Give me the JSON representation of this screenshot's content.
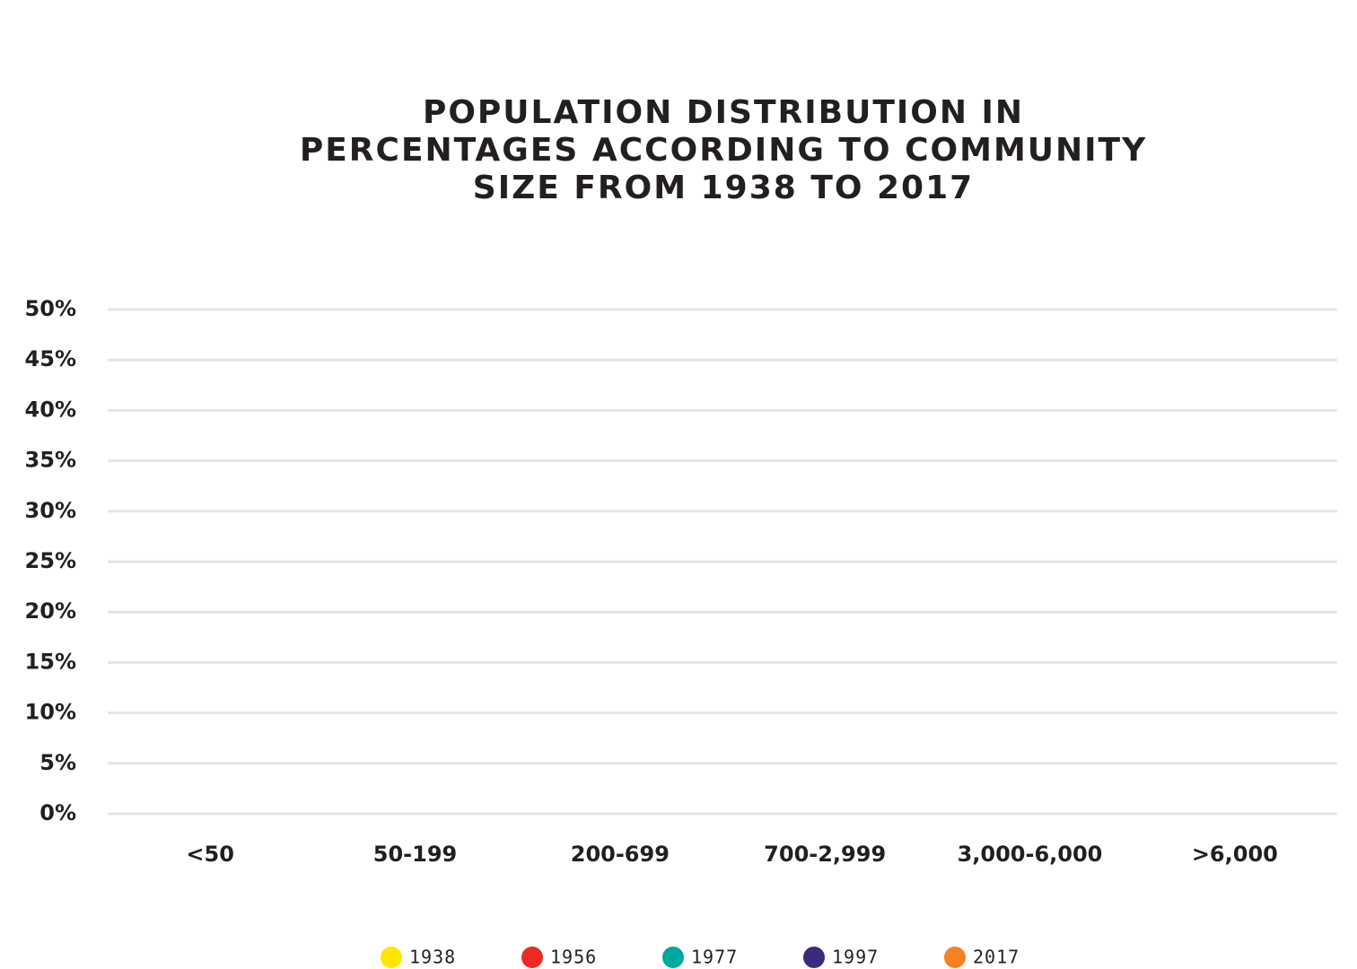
{
  "chart_data": {
    "type": "bar",
    "title": [
      "POPULATION DISTRIBUTION IN",
      "PERCENTAGES ACCORDING TO COMMUNITY",
      "SIZE FROM 1938 TO 2017"
    ],
    "categories": [
      "<50",
      "50-199",
      "200-699",
      "700-2,999",
      "3,000-6,000",
      ">6,000"
    ],
    "series": [
      {
        "name": "1938",
        "color": "#ffe600",
        "values": [
          null,
          null,
          null,
          null,
          null,
          null
        ]
      },
      {
        "name": "1956",
        "color": "#ee2a24",
        "values": [
          null,
          null,
          null,
          null,
          null,
          null
        ]
      },
      {
        "name": "1977",
        "color": "#00a99d",
        "values": [
          null,
          null,
          null,
          null,
          null,
          null
        ]
      },
      {
        "name": "1997",
        "color": "#3d2a7d",
        "values": [
          null,
          null,
          null,
          null,
          null,
          null
        ]
      },
      {
        "name": "2017",
        "color": "#f58220",
        "values": [
          null,
          null,
          null,
          null,
          null,
          null
        ]
      }
    ],
    "ylim": [
      0,
      50
    ],
    "yticks": [
      {
        "value": 0,
        "label": "0%"
      },
      {
        "value": 5,
        "label": "5%"
      },
      {
        "value": 10,
        "label": "10%"
      },
      {
        "value": 15,
        "label": "15%"
      },
      {
        "value": 20,
        "label": "20%"
      },
      {
        "value": 25,
        "label": "25%"
      },
      {
        "value": 30,
        "label": "30%"
      },
      {
        "value": 35,
        "label": "35%"
      },
      {
        "value": 40,
        "label": "40%"
      },
      {
        "value": 45,
        "label": "45%"
      },
      {
        "value": 50,
        "label": "50%"
      }
    ],
    "grid": true,
    "legend": "bottom"
  }
}
